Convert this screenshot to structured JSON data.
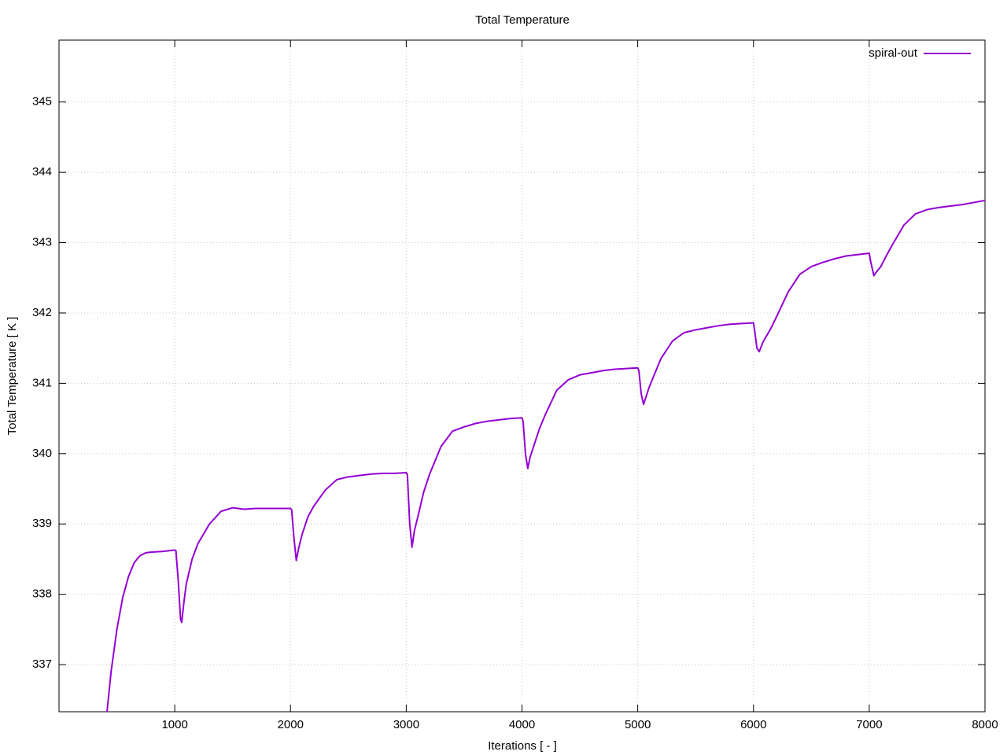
{
  "chart_data": {
    "type": "line",
    "title": "Total Temperature",
    "x_label": "Iterations [ - ]",
    "y_label": "Total Temperature [ K ]",
    "xlim": [
      0,
      8000
    ],
    "ylim": [
      336.33,
      345.88
    ],
    "xticks": [
      1000,
      2000,
      3000,
      4000,
      5000,
      6000,
      7000,
      8000
    ],
    "yticks": [
      337,
      338,
      339,
      340,
      341,
      342,
      343,
      344,
      345
    ],
    "grid": true,
    "legend": "top-right",
    "x": [
      415,
      450,
      500,
      550,
      600,
      650,
      700,
      750,
      800,
      900,
      1000,
      1010,
      1030,
      1050,
      1060,
      1080,
      1100,
      1150,
      1200,
      1300,
      1400,
      1500,
      1600,
      1700,
      1800,
      1900,
      2000,
      2010,
      2030,
      2050,
      2070,
      2100,
      2150,
      2200,
      2300,
      2400,
      2500,
      2600,
      2700,
      2800,
      2900,
      3000,
      3010,
      3030,
      3050,
      3070,
      3100,
      3150,
      3200,
      3300,
      3400,
      3500,
      3600,
      3700,
      3800,
      3900,
      4000,
      4010,
      4030,
      4050,
      4070,
      4100,
      4150,
      4200,
      4300,
      4400,
      4500,
      4600,
      4700,
      4800,
      4900,
      5000,
      5010,
      5030,
      5050,
      5070,
      5100,
      5150,
      5200,
      5300,
      5400,
      5500,
      5600,
      5700,
      5800,
      5900,
      6000,
      6010,
      6030,
      6050,
      6080,
      6150,
      6200,
      6300,
      6400,
      6500,
      6600,
      6700,
      6800,
      6900,
      7000,
      7010,
      7040,
      7060,
      7100,
      7150,
      7200,
      7300,
      7400,
      7500,
      7600,
      7700,
      7800,
      7900,
      8000
    ],
    "series": [
      {
        "name": "spiral-out",
        "color": "#9400d3",
        "values": [
          336.33,
          336.9,
          337.5,
          337.95,
          338.25,
          338.45,
          338.55,
          338.59,
          338.6,
          338.61,
          338.63,
          338.62,
          338.2,
          337.65,
          337.6,
          337.9,
          338.15,
          338.5,
          338.72,
          339.0,
          339.18,
          339.23,
          339.21,
          339.22,
          339.22,
          339.22,
          339.22,
          339.2,
          338.8,
          338.48,
          338.65,
          338.85,
          339.1,
          339.25,
          339.48,
          339.63,
          339.67,
          339.69,
          339.71,
          339.72,
          339.72,
          339.73,
          339.7,
          339.0,
          338.67,
          338.9,
          339.1,
          339.45,
          339.7,
          340.1,
          340.32,
          340.38,
          340.43,
          340.46,
          340.48,
          340.5,
          340.51,
          340.45,
          340.0,
          339.79,
          339.95,
          340.1,
          340.35,
          340.55,
          340.9,
          341.05,
          341.12,
          341.15,
          341.18,
          341.2,
          341.21,
          341.22,
          341.18,
          340.85,
          340.7,
          340.8,
          340.95,
          341.15,
          341.35,
          341.6,
          341.72,
          341.76,
          341.79,
          341.82,
          341.84,
          341.85,
          341.86,
          341.75,
          341.5,
          341.45,
          341.58,
          341.78,
          341.95,
          342.3,
          342.55,
          342.66,
          342.72,
          342.77,
          342.81,
          342.83,
          342.85,
          342.75,
          342.53,
          342.58,
          342.66,
          342.82,
          342.97,
          343.25,
          343.41,
          343.47,
          343.5,
          343.52,
          343.54,
          343.57,
          343.6
        ]
      }
    ]
  }
}
